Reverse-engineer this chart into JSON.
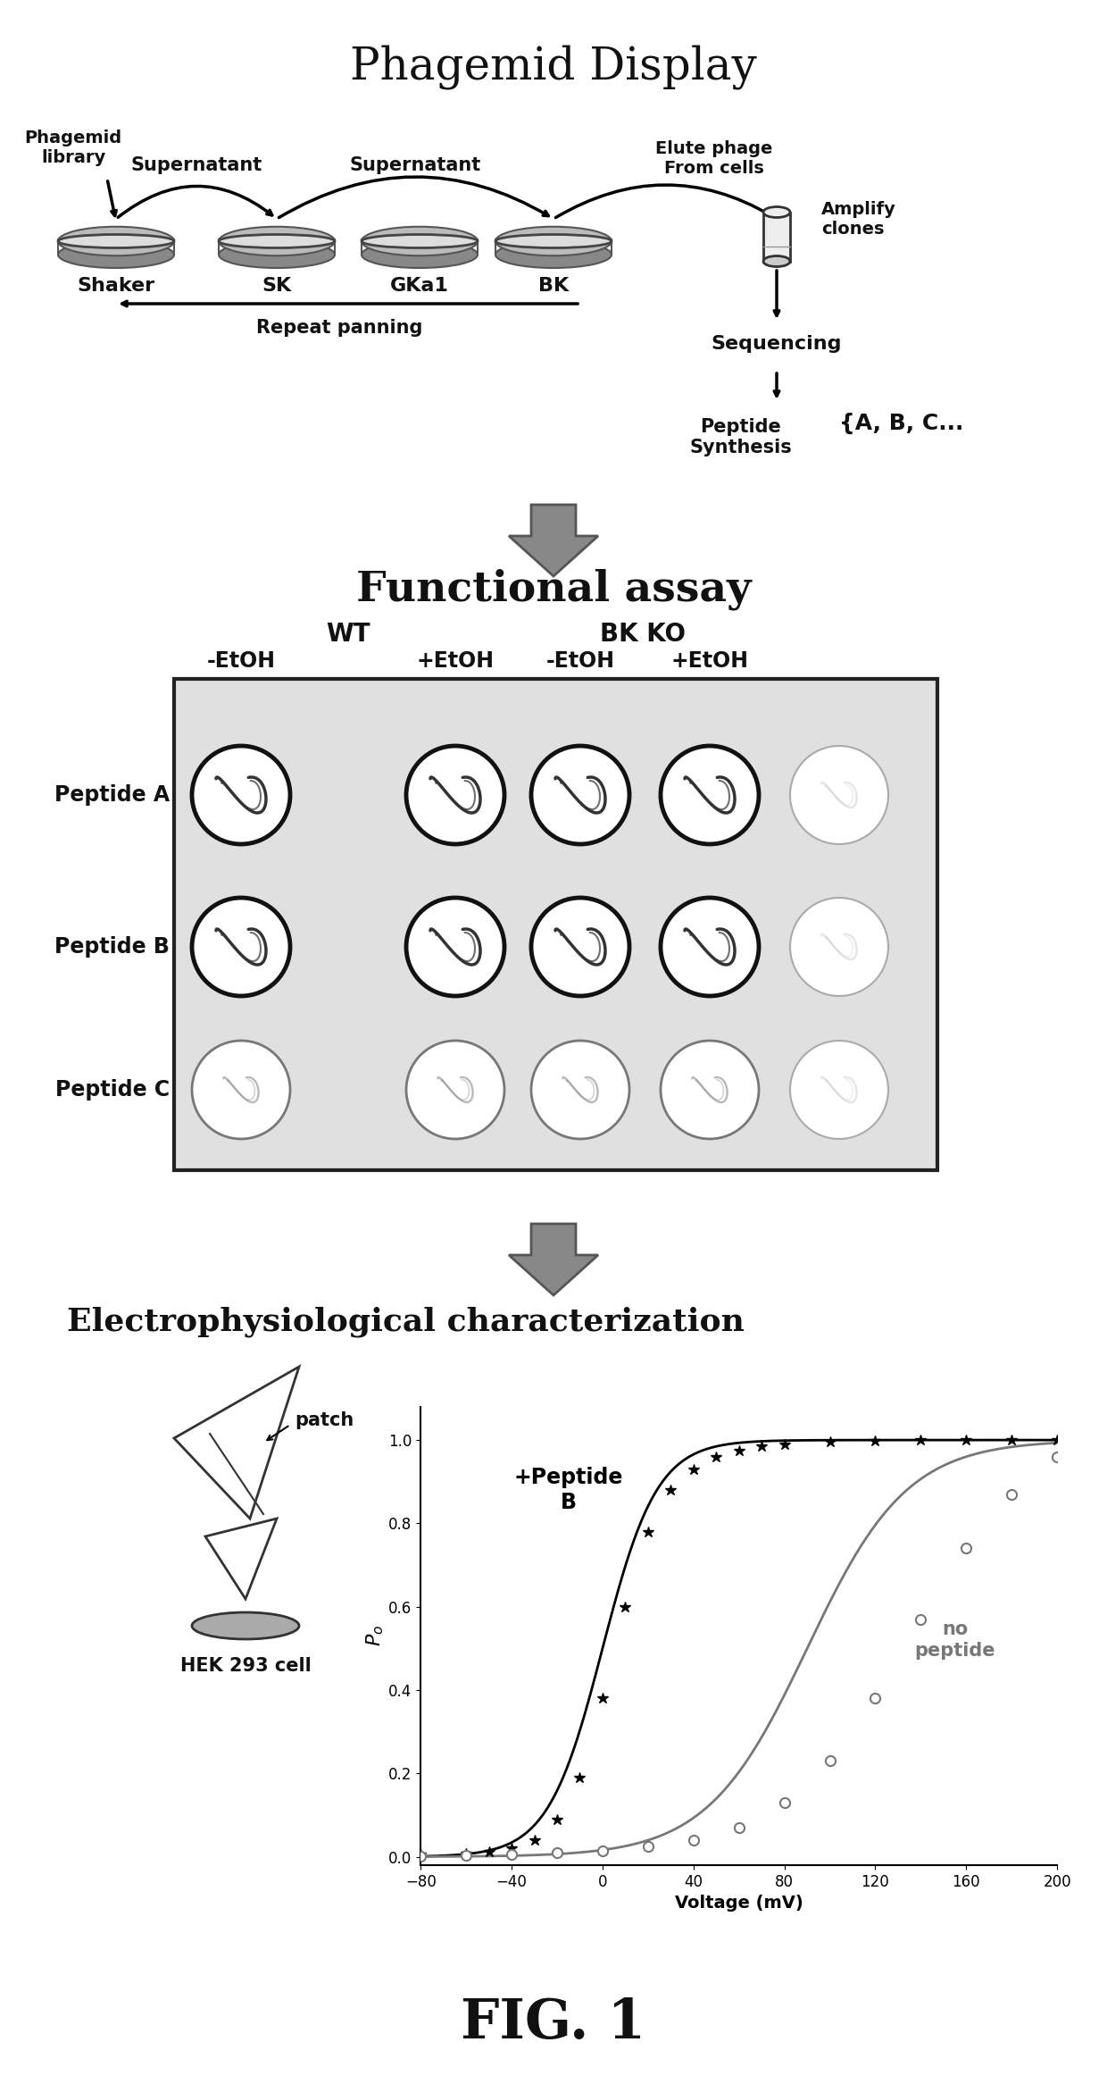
{
  "title": "Phagemid Display",
  "section2_title": "Functional assay",
  "section3_title": "Electrophysiological characterization",
  "fig_label": "FIG. 1",
  "background_color": "#ffffff",
  "text_color": "#000000",
  "peptide_with_label": "+Peptide\nB",
  "no_peptide_label": "no\npeptide",
  "voltage_xlabel": "Voltage (mV)",
  "po_ylabel": "$P_o$",
  "plot_xlim": [
    -80,
    200
  ],
  "plot_ylim": [
    -0.02,
    1.08
  ],
  "plot_xticks": [
    -80,
    -40,
    0,
    40,
    80,
    120,
    160,
    200
  ],
  "plot_yticks": [
    0.0,
    0.2,
    0.4,
    0.6,
    0.8,
    1.0
  ],
  "peptide_curve_x": [
    -80,
    -60,
    -50,
    -40,
    -30,
    -20,
    -10,
    0,
    10,
    20,
    30,
    40,
    50,
    60,
    70,
    80,
    100,
    120,
    140,
    160,
    180,
    200
  ],
  "peptide_curve_y": [
    0.005,
    0.008,
    0.012,
    0.02,
    0.04,
    0.09,
    0.19,
    0.38,
    0.6,
    0.78,
    0.88,
    0.93,
    0.96,
    0.975,
    0.985,
    0.99,
    0.995,
    0.998,
    1.0,
    1.0,
    1.0,
    1.0
  ],
  "no_peptide_curve_x": [
    -80,
    -60,
    -40,
    -20,
    0,
    20,
    40,
    60,
    80,
    100,
    120,
    140,
    160,
    180,
    200
  ],
  "no_peptide_curve_y": [
    0.002,
    0.003,
    0.005,
    0.01,
    0.015,
    0.025,
    0.04,
    0.07,
    0.13,
    0.23,
    0.38,
    0.57,
    0.74,
    0.87,
    0.96
  ],
  "hek_label": "HEK 293 cell",
  "patch_label": "patch",
  "dish_labels": [
    "Shaker",
    "SK",
    "GKa1",
    "BK"
  ],
  "supernatant_label": "Supernatant",
  "elute_label": "Elute phage\nFrom cells",
  "amplify_label": "Amplify\nclones",
  "sequencing_label": "Sequencing",
  "peptide_synth_label": "Peptide\nSynthesis",
  "peptide_synth_suffix": "{A, B, C...",
  "repeat_panning_label": "Repeat panning",
  "phagemid_library_label": "Phagemid\nlibrary",
  "row_labels": [
    "Peptide A",
    "Peptide B",
    "Peptide C"
  ],
  "wt_label": "WT",
  "bkko_label": "BK KO",
  "col_headers": [
    "-EtOH",
    "+EtOH",
    "-EtOH",
    "+EtOH"
  ]
}
